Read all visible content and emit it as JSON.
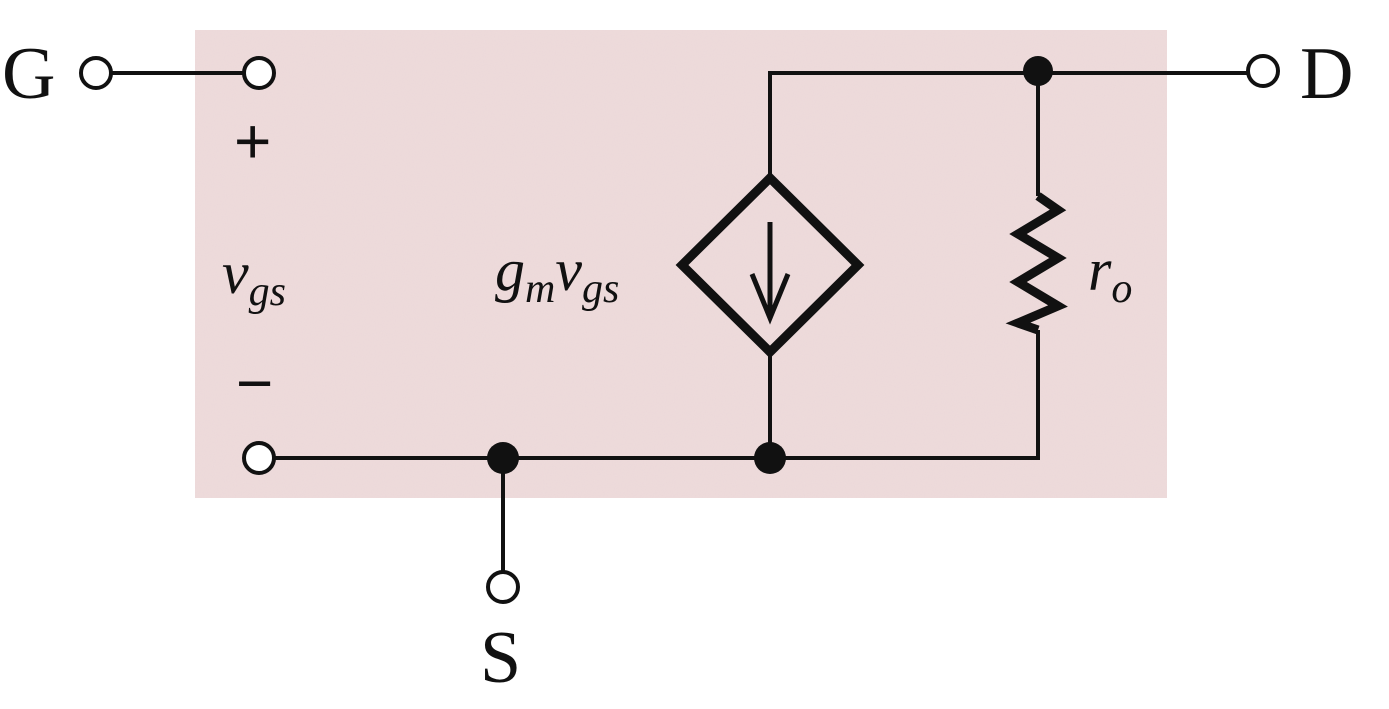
{
  "diagram": {
    "colors": {
      "background_panel": "#eedcdc",
      "ink": "#111111"
    },
    "terminals": {
      "gate": "G",
      "drain": "D",
      "source": "S"
    },
    "input_port": {
      "plus": "+",
      "minus": "−",
      "voltage_main": "v",
      "voltage_sub": "gs"
    },
    "dependent_source": {
      "label_g": "g",
      "label_g_sub": "m",
      "label_v": "v",
      "label_v_sub": "gs"
    },
    "resistor": {
      "label_main": "r",
      "label_sub": "o"
    }
  }
}
